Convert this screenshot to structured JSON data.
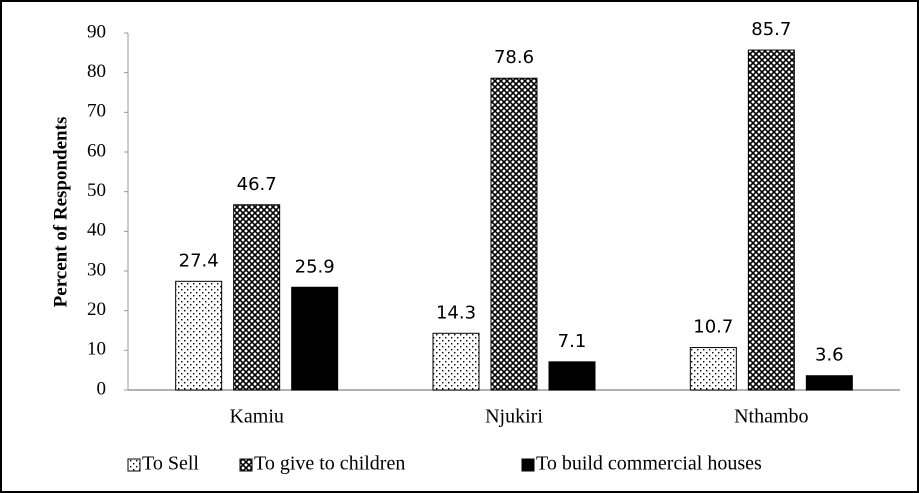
{
  "chart_data": {
    "type": "bar",
    "y_label": "Percent of Respondents",
    "categories": [
      "Kamiu",
      "Njukiri",
      "Nthambo"
    ],
    "series": [
      {
        "name": "To Sell",
        "color": "#000000",
        "pattern": "dots",
        "values": [
          27.4,
          14.3,
          10.7
        ]
      },
      {
        "name": "To give to children",
        "color": "#000000",
        "pattern": "crosshatch",
        "values": [
          46.7,
          78.6,
          85.7
        ]
      },
      {
        "name": "To build commercial houses",
        "color": "#000000",
        "pattern": "solid",
        "values": [
          25.9,
          7.1,
          3.6
        ]
      }
    ],
    "ylim": [
      0,
      90
    ],
    "yticks": [
      0,
      10,
      20,
      30,
      40,
      50,
      60,
      70,
      80,
      90
    ],
    "grid": false,
    "legend": "bottom"
  }
}
